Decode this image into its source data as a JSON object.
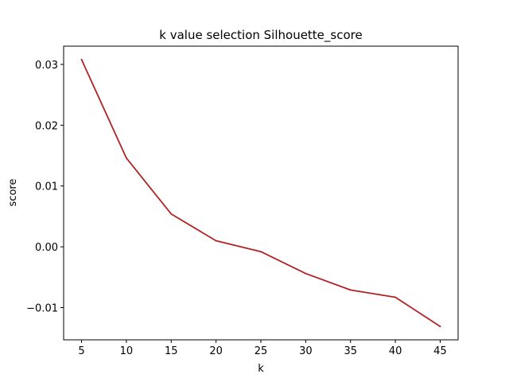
{
  "chart_data": {
    "type": "line",
    "title": "k value selection Silhouette_score",
    "xlabel": "k",
    "ylabel": "score",
    "x": [
      5,
      10,
      15,
      20,
      25,
      30,
      35,
      40,
      45
    ],
    "series": [
      {
        "values": [
          0.0308,
          0.0146,
          0.0054,
          0.001,
          -0.0008,
          -0.0044,
          -0.0071,
          -0.0083,
          -0.0131
        ],
        "color": "#b22222"
      }
    ],
    "xlim": [
      3.0,
      47.0
    ],
    "ylim": [
      -0.0153,
      0.033
    ],
    "xticks": [
      5,
      10,
      15,
      20,
      25,
      30,
      35,
      40,
      45
    ],
    "xtick_labels": [
      "5",
      "10",
      "15",
      "20",
      "25",
      "30",
      "35",
      "40",
      "45"
    ],
    "yticks": [
      -0.01,
      0.0,
      0.01,
      0.02,
      0.03
    ],
    "ytick_labels": [
      "−0.01",
      "0.00",
      "0.01",
      "0.02",
      "0.03"
    ],
    "grid": false,
    "legend": "none"
  }
}
